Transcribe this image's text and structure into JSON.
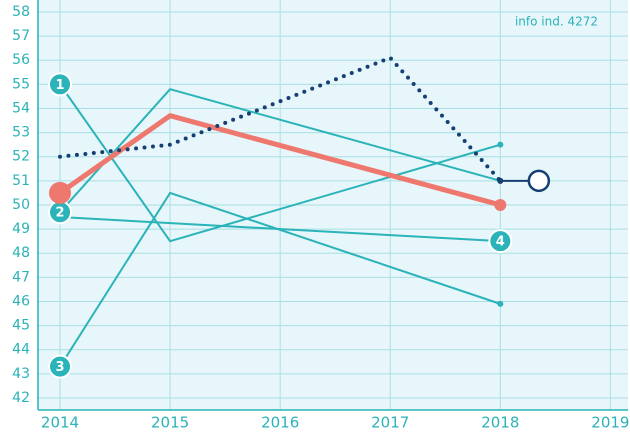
{
  "chart_data": {
    "type": "line",
    "annotation": "info ind. 4272",
    "xlim": [
      2013.8,
      2019.16
    ],
    "xticks": [
      2014,
      2015,
      2016,
      2017,
      2018,
      2019
    ],
    "ylim": [
      41.5,
      58
    ],
    "yticks": [
      42,
      43,
      44,
      45,
      46,
      47,
      48,
      49,
      50,
      51,
      52,
      53,
      54,
      55,
      56,
      57,
      58
    ],
    "grid": true,
    "series": [
      {
        "name": "1",
        "color": "#2ab3b8",
        "style": "thin",
        "x": [
          2014,
          2015,
          2018
        ],
        "values": [
          55,
          48.5,
          52.5
        ]
      },
      {
        "name": "2",
        "color": "#2ab3b8",
        "style": "thin",
        "x": [
          2014,
          2015,
          2018
        ],
        "values": [
          49.7,
          54.8,
          51
        ]
      },
      {
        "name": "3",
        "color": "#2ab3b8",
        "style": "thin",
        "x": [
          2014,
          2015,
          2018
        ],
        "values": [
          43.3,
          50.5,
          45.9
        ]
      },
      {
        "name": "4",
        "color": "#2ab3b8",
        "style": "thin",
        "badge_at": "end",
        "x": [
          2014,
          2018
        ],
        "values": [
          49.5,
          48.5
        ]
      },
      {
        "color": "#ee786e",
        "style": "bold",
        "x": [
          2014,
          2015,
          2018
        ],
        "values": [
          50.5,
          53.7,
          50
        ]
      },
      {
        "color": "#163f73",
        "style": "dotted",
        "x": [
          2014,
          2015,
          2017,
          2018
        ],
        "values": [
          52,
          52.5,
          56.1,
          51
        ]
      },
      {
        "color": "#163f73",
        "style": "projection",
        "x": [
          2018,
          2018.35
        ],
        "values": [
          51,
          51
        ]
      }
    ]
  }
}
